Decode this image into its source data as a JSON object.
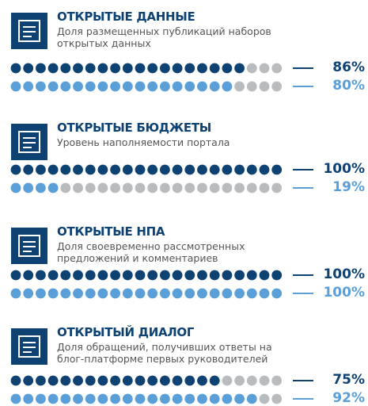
{
  "sections": [
    {
      "title": "ОТКРЫТЫЕ ДАННЫЕ",
      "subtitle": "Доля размещенных публикаций наборов открытых данных",
      "rows": [
        {
          "value": 86,
          "label": "86%",
          "color": "#0d4272"
        },
        {
          "value": 80,
          "label": "80%",
          "color": "#5b9fd8"
        }
      ]
    },
    {
      "title": "ОТКРЫТЫЕ БЮДЖЕТЫ",
      "subtitle": "Уровень наполняемости портала",
      "rows": [
        {
          "value": 100,
          "label": "100%",
          "color": "#0d4272"
        },
        {
          "value": 19,
          "label": "19%",
          "color": "#5b9fd8"
        }
      ]
    },
    {
      "title": "ОТКРЫТЫЕ НПА",
      "subtitle": "Доля своевременно рассмотренных предложений и комментариев",
      "rows": [
        {
          "value": 100,
          "label": "100%",
          "color": "#0d4272"
        },
        {
          "value": 100,
          "label": "100%",
          "color": "#5b9fd8"
        }
      ]
    },
    {
      "title": "ОТКРЫТЫЙ ДИАЛОГ",
      "subtitle": "Доля обращений, получивших ответы на блог-платформе первых руководителей",
      "rows": [
        {
          "value": 75,
          "label": "75%",
          "color": "#0d4272"
        },
        {
          "value": 92,
          "label": "92%",
          "color": "#5b9fd8"
        }
      ]
    }
  ]
}
